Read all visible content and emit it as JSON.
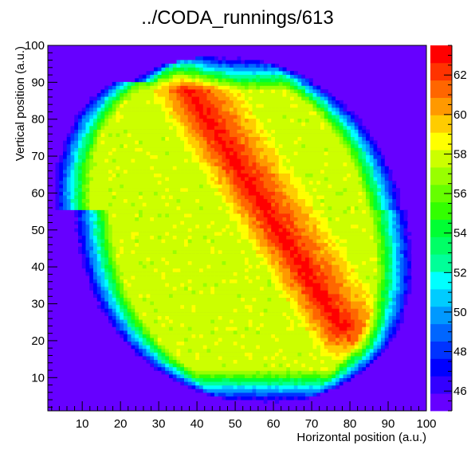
{
  "chart_data": {
    "type": "heatmap",
    "title": "../CODA_runnings/613",
    "xlabel": "Horizontal position (a.u.)",
    "ylabel": "Vertical position (a.u.)",
    "xlim": [
      1,
      100
    ],
    "ylim": [
      1,
      100
    ],
    "x_ticks": [
      10,
      20,
      30,
      40,
      50,
      60,
      70,
      80,
      90,
      100
    ],
    "y_ticks": [
      10,
      20,
      30,
      40,
      50,
      60,
      70,
      80,
      90,
      100
    ],
    "z_range": [
      45,
      63.5
    ],
    "z_ticks": [
      46,
      48,
      50,
      52,
      54,
      56,
      58,
      60,
      62
    ],
    "grid": false,
    "colorbar": "right",
    "bins": [
      100,
      100
    ],
    "background_value": 45,
    "palette": [
      "#6600ff",
      "#3300ff",
      "#0000ff",
      "#0033ff",
      "#0066ff",
      "#0099ff",
      "#00ccff",
      "#00ffff",
      "#00ff99",
      "#00ff66",
      "#00ff33",
      "#33ff00",
      "#66ff00",
      "#99ff00",
      "#ccff00",
      "#ffff00",
      "#ffcc00",
      "#ff9900",
      "#ff6600",
      "#ff3300",
      "#ff0000"
    ],
    "distribution": {
      "description_values": "Blob of beam intensity: outer edge ~45, body ~57-59 (yellow), core up to ~63 (red).",
      "edge_level": 45,
      "body_level": 57.8,
      "core_level": 63.2
    }
  }
}
